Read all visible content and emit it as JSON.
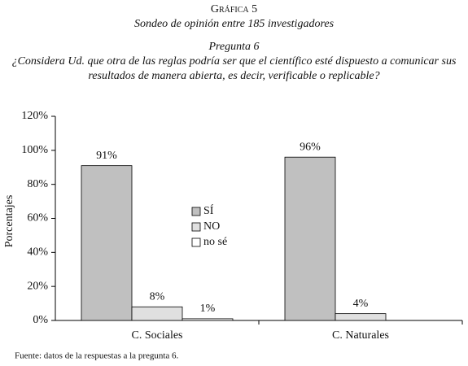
{
  "chart_data": {
    "type": "bar",
    "title": "Gráfica 5",
    "subtitle": "Sondeo de opinión entre 185 investigadores",
    "question_number": "Pregunta 6",
    "question": "¿Considera Ud. que otra de las reglas podría ser que el científico esté dispuesto a comunicar sus resultados de manera abierta, es decir, verificable o replicable?",
    "ylabel": "Porcentajes",
    "source": "Fuente: datos de la respuestas a la pregunta 6.",
    "categories": [
      "C. Sociales",
      "C. Naturales"
    ],
    "series": [
      {
        "name": "SÍ",
        "color": "#c0c0c0",
        "values": [
          91,
          96
        ],
        "value_labels": [
          "91%",
          "96%"
        ]
      },
      {
        "name": "NO",
        "color": "#e0e0e0",
        "values": [
          8,
          4
        ],
        "value_labels": [
          "8%",
          "4%"
        ]
      },
      {
        "name": "no sé",
        "color": "#ffffff",
        "values": [
          1,
          null
        ],
        "value_labels": [
          "1%",
          null
        ]
      }
    ],
    "ylim": [
      0,
      120
    ],
    "yticks": [
      {
        "value": 0,
        "label": "0%"
      },
      {
        "value": 20,
        "label": "20%"
      },
      {
        "value": 40,
        "label": "40%"
      },
      {
        "value": 60,
        "label": "60%"
      },
      {
        "value": 80,
        "label": "80%"
      },
      {
        "value": 100,
        "label": "100%"
      },
      {
        "value": 120,
        "label": "120%"
      }
    ]
  }
}
